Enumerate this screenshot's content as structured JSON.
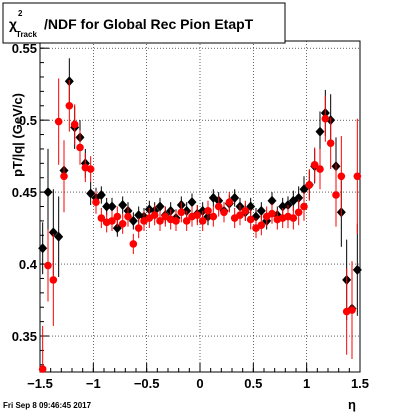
{
  "title": {
    "prefix": "χ",
    "superscript": "2",
    "subscript": "Track",
    "rest": "/NDF for Global Rec Pion EtapT"
  },
  "timestamp": "Fri Sep  8 09:46:45 2017",
  "chart_data": {
    "type": "scatter",
    "xlabel": "η",
    "ylabel": "p_T/|q| (GeV/c)",
    "ylabel_display": "pT/|q| (GeV/c)",
    "xlim": [
      -1.5,
      1.5
    ],
    "ylim": [
      0.325,
      0.555
    ],
    "x_ticks": [
      -1.5,
      -1,
      -0.5,
      0,
      0.5,
      1,
      1.5
    ],
    "x_tick_labels": [
      "−1.5",
      "−1",
      "−0.5",
      "0",
      "0.5",
      "1",
      "1.5"
    ],
    "y_ticks": [
      0.35,
      0.4,
      0.45,
      0.5,
      0.55
    ],
    "y_tick_labels": [
      "0.35",
      "0.4",
      "0.45",
      "0.5",
      "0.55"
    ],
    "grid": true,
    "series": [
      {
        "color": "#000000",
        "marker": "diamond",
        "points": [
          {
            "x": -1.475,
            "y": 0.411,
            "err": 0.018
          },
          {
            "x": -1.425,
            "y": 0.45,
            "err": 0.03
          },
          {
            "x": -1.375,
            "y": 0.422,
            "err": 0.03
          },
          {
            "x": -1.325,
            "y": 0.419,
            "err": 0.028
          },
          {
            "x": -1.275,
            "y": 0.465,
            "err": 0.02
          },
          {
            "x": -1.225,
            "y": 0.527,
            "err": 0.016
          },
          {
            "x": -1.175,
            "y": 0.495,
            "err": 0.015
          },
          {
            "x": -1.125,
            "y": 0.488,
            "err": 0.012
          },
          {
            "x": -1.075,
            "y": 0.47,
            "err": 0.01
          },
          {
            "x": -1.025,
            "y": 0.449,
            "err": 0.008
          },
          {
            "x": -0.975,
            "y": 0.446,
            "err": 0.007
          },
          {
            "x": -0.925,
            "y": 0.448,
            "err": 0.006
          },
          {
            "x": -0.875,
            "y": 0.44,
            "err": 0.006
          },
          {
            "x": -0.825,
            "y": 0.44,
            "err": 0.006
          },
          {
            "x": -0.775,
            "y": 0.425,
            "err": 0.006
          },
          {
            "x": -0.725,
            "y": 0.441,
            "err": 0.006
          },
          {
            "x": -0.675,
            "y": 0.437,
            "err": 0.006
          },
          {
            "x": -0.625,
            "y": 0.43,
            "err": 0.006
          },
          {
            "x": -0.575,
            "y": 0.434,
            "err": 0.006
          },
          {
            "x": -0.525,
            "y": 0.433,
            "err": 0.006
          },
          {
            "x": -0.475,
            "y": 0.438,
            "err": 0.006
          },
          {
            "x": -0.425,
            "y": 0.437,
            "err": 0.006
          },
          {
            "x": -0.375,
            "y": 0.44,
            "err": 0.006
          },
          {
            "x": -0.325,
            "y": 0.434,
            "err": 0.006
          },
          {
            "x": -0.275,
            "y": 0.437,
            "err": 0.006
          },
          {
            "x": -0.225,
            "y": 0.432,
            "err": 0.006
          },
          {
            "x": -0.175,
            "y": 0.441,
            "err": 0.006
          },
          {
            "x": -0.125,
            "y": 0.437,
            "err": 0.006
          },
          {
            "x": -0.075,
            "y": 0.443,
            "err": 0.006
          },
          {
            "x": -0.025,
            "y": 0.435,
            "err": 0.006
          },
          {
            "x": 0.025,
            "y": 0.437,
            "err": 0.006
          },
          {
            "x": 0.075,
            "y": 0.433,
            "err": 0.006
          },
          {
            "x": 0.125,
            "y": 0.446,
            "err": 0.006
          },
          {
            "x": 0.175,
            "y": 0.444,
            "err": 0.006
          },
          {
            "x": 0.225,
            "y": 0.437,
            "err": 0.006
          },
          {
            "x": 0.275,
            "y": 0.442,
            "err": 0.006
          },
          {
            "x": 0.325,
            "y": 0.446,
            "err": 0.006
          },
          {
            "x": 0.375,
            "y": 0.44,
            "err": 0.006
          },
          {
            "x": 0.425,
            "y": 0.436,
            "err": 0.006
          },
          {
            "x": 0.475,
            "y": 0.44,
            "err": 0.006
          },
          {
            "x": 0.525,
            "y": 0.433,
            "err": 0.006
          },
          {
            "x": 0.575,
            "y": 0.437,
            "err": 0.006
          },
          {
            "x": 0.625,
            "y": 0.43,
            "err": 0.006
          },
          {
            "x": 0.675,
            "y": 0.444,
            "err": 0.006
          },
          {
            "x": 0.725,
            "y": 0.434,
            "err": 0.006
          },
          {
            "x": 0.775,
            "y": 0.44,
            "err": 0.006
          },
          {
            "x": 0.825,
            "y": 0.441,
            "err": 0.006
          },
          {
            "x": 0.875,
            "y": 0.444,
            "err": 0.007
          },
          {
            "x": 0.925,
            "y": 0.446,
            "err": 0.008
          },
          {
            "x": 0.975,
            "y": 0.452,
            "err": 0.009
          },
          {
            "x": 1.025,
            "y": 0.455,
            "err": 0.01
          },
          {
            "x": 1.075,
            "y": 0.468,
            "err": 0.012
          },
          {
            "x": 1.125,
            "y": 0.492,
            "err": 0.014
          },
          {
            "x": 1.175,
            "y": 0.505,
            "err": 0.016
          },
          {
            "x": 1.225,
            "y": 0.5,
            "err": 0.018
          },
          {
            "x": 1.275,
            "y": 0.468,
            "err": 0.02
          },
          {
            "x": 1.325,
            "y": 0.436,
            "err": 0.024
          },
          {
            "x": 1.375,
            "y": 0.389,
            "err": 0.028
          },
          {
            "x": 1.425,
            "y": 0.369,
            "err": 0.03
          },
          {
            "x": 1.475,
            "y": 0.396,
            "err": 0.032
          }
        ]
      },
      {
        "color": "#ff0000",
        "marker": "circle",
        "points": [
          {
            "x": -1.475,
            "y": 0.327,
            "err": 0.03
          },
          {
            "x": -1.425,
            "y": 0.399,
            "err": 0.025
          },
          {
            "x": -1.375,
            "y": 0.389,
            "err": 0.032
          },
          {
            "x": -1.325,
            "y": 0.499,
            "err": 0.03
          },
          {
            "x": -1.275,
            "y": 0.461,
            "err": 0.025
          },
          {
            "x": -1.225,
            "y": 0.51,
            "err": 0.018
          },
          {
            "x": -1.175,
            "y": 0.497,
            "err": 0.014
          },
          {
            "x": -1.125,
            "y": 0.481,
            "err": 0.012
          },
          {
            "x": -1.075,
            "y": 0.467,
            "err": 0.01
          },
          {
            "x": -1.025,
            "y": 0.466,
            "err": 0.009
          },
          {
            "x": -0.975,
            "y": 0.443,
            "err": 0.008
          },
          {
            "x": -0.925,
            "y": 0.432,
            "err": 0.007
          },
          {
            "x": -0.875,
            "y": 0.429,
            "err": 0.007
          },
          {
            "x": -0.825,
            "y": 0.43,
            "err": 0.007
          },
          {
            "x": -0.775,
            "y": 0.433,
            "err": 0.007
          },
          {
            "x": -0.725,
            "y": 0.428,
            "err": 0.007
          },
          {
            "x": -0.675,
            "y": 0.433,
            "err": 0.007
          },
          {
            "x": -0.625,
            "y": 0.414,
            "err": 0.007
          },
          {
            "x": -0.575,
            "y": 0.425,
            "err": 0.007
          },
          {
            "x": -0.525,
            "y": 0.43,
            "err": 0.007
          },
          {
            "x": -0.475,
            "y": 0.432,
            "err": 0.007
          },
          {
            "x": -0.425,
            "y": 0.434,
            "err": 0.007
          },
          {
            "x": -0.375,
            "y": 0.43,
            "err": 0.007
          },
          {
            "x": -0.325,
            "y": 0.433,
            "err": 0.007
          },
          {
            "x": -0.275,
            "y": 0.431,
            "err": 0.007
          },
          {
            "x": -0.225,
            "y": 0.43,
            "err": 0.007
          },
          {
            "x": -0.175,
            "y": 0.436,
            "err": 0.007
          },
          {
            "x": -0.125,
            "y": 0.43,
            "err": 0.007
          },
          {
            "x": -0.075,
            "y": 0.433,
            "err": 0.007
          },
          {
            "x": -0.025,
            "y": 0.434,
            "err": 0.007
          },
          {
            "x": 0.025,
            "y": 0.43,
            "err": 0.007
          },
          {
            "x": 0.075,
            "y": 0.437,
            "err": 0.007
          },
          {
            "x": 0.125,
            "y": 0.433,
            "err": 0.007
          },
          {
            "x": 0.175,
            "y": 0.44,
            "err": 0.007
          },
          {
            "x": 0.225,
            "y": 0.436,
            "err": 0.007
          },
          {
            "x": 0.275,
            "y": 0.443,
            "err": 0.007
          },
          {
            "x": 0.325,
            "y": 0.432,
            "err": 0.007
          },
          {
            "x": 0.375,
            "y": 0.434,
            "err": 0.007
          },
          {
            "x": 0.425,
            "y": 0.437,
            "err": 0.007
          },
          {
            "x": 0.475,
            "y": 0.431,
            "err": 0.007
          },
          {
            "x": 0.525,
            "y": 0.425,
            "err": 0.007
          },
          {
            "x": 0.575,
            "y": 0.427,
            "err": 0.007
          },
          {
            "x": 0.625,
            "y": 0.433,
            "err": 0.007
          },
          {
            "x": 0.675,
            "y": 0.435,
            "err": 0.007
          },
          {
            "x": 0.725,
            "y": 0.431,
            "err": 0.007
          },
          {
            "x": 0.775,
            "y": 0.432,
            "err": 0.007
          },
          {
            "x": 0.825,
            "y": 0.433,
            "err": 0.008
          },
          {
            "x": 0.875,
            "y": 0.432,
            "err": 0.008
          },
          {
            "x": 0.925,
            "y": 0.436,
            "err": 0.009
          },
          {
            "x": 0.975,
            "y": 0.44,
            "err": 0.01
          },
          {
            "x": 1.025,
            "y": 0.455,
            "err": 0.011
          },
          {
            "x": 1.075,
            "y": 0.469,
            "err": 0.012
          },
          {
            "x": 1.125,
            "y": 0.466,
            "err": 0.014
          },
          {
            "x": 1.175,
            "y": 0.501,
            "err": 0.016
          },
          {
            "x": 1.225,
            "y": 0.484,
            "err": 0.018
          },
          {
            "x": 1.275,
            "y": 0.448,
            "err": 0.022
          },
          {
            "x": 1.325,
            "y": 0.461,
            "err": 0.028
          },
          {
            "x": 1.375,
            "y": 0.367,
            "err": 0.03
          },
          {
            "x": 1.425,
            "y": 0.368,
            "err": 0.034
          },
          {
            "x": 1.475,
            "y": 0.461,
            "err": 0.04
          }
        ]
      }
    ]
  }
}
